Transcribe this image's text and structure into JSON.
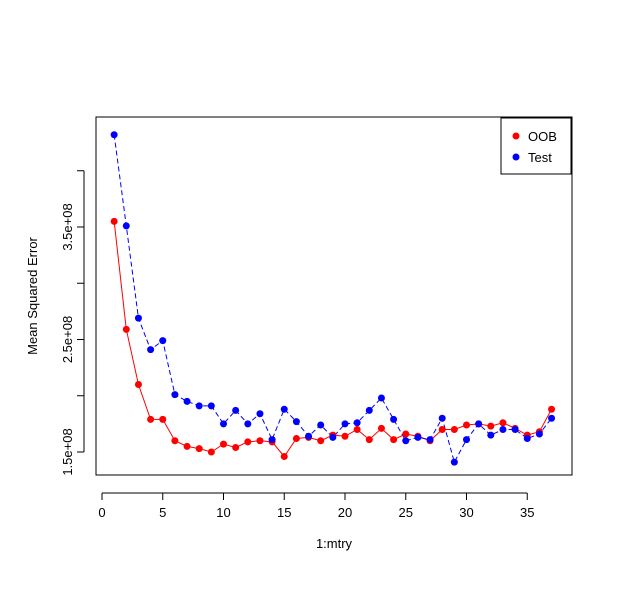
{
  "chart_data": {
    "type": "scatter",
    "xlabel": "1:mtry",
    "ylabel": "Mean Squared Error",
    "xlim": [
      0,
      38
    ],
    "ylim": [
      137000000,
      430000000
    ],
    "xticks": [
      0,
      5,
      10,
      15,
      20,
      25,
      30,
      35
    ],
    "yticks_minor": [
      150000000,
      200000000,
      250000000,
      300000000,
      350000000,
      400000000
    ],
    "ytick_labels": [
      {
        "value": 150000000,
        "label": "1.5e+08"
      },
      {
        "value": 250000000,
        "label": "2.5e+08"
      },
      {
        "value": 350000000,
        "label": "3.5e+08"
      }
    ],
    "legend_position": "top-right",
    "series": [
      {
        "name": "OOB",
        "color": "#ff0000",
        "line_style": "solid",
        "x": [
          1,
          2,
          3,
          4,
          5,
          6,
          7,
          8,
          9,
          10,
          11,
          12,
          13,
          14,
          15,
          16,
          17,
          18,
          19,
          20,
          21,
          22,
          23,
          24,
          25,
          26,
          27,
          28,
          29,
          30,
          31,
          32,
          33,
          34,
          35,
          36,
          37
        ],
        "y": [
          355000000,
          259000000,
          210000000,
          179000000,
          179000000,
          160000000,
          155000000,
          153000000,
          150000000,
          157000000,
          154000000,
          159000000,
          160000000,
          159000000,
          146000000,
          162000000,
          163000000,
          160000000,
          165000000,
          164000000,
          170000000,
          161000000,
          171000000,
          161000000,
          166000000,
          164000000,
          160000000,
          170000000,
          170000000,
          174000000,
          175000000,
          173000000,
          176000000,
          171000000,
          165000000,
          168000000,
          188000000
        ]
      },
      {
        "name": "Test",
        "color": "#0000ff",
        "line_style": "dashed",
        "x": [
          1,
          2,
          3,
          4,
          5,
          6,
          7,
          8,
          9,
          10,
          11,
          12,
          13,
          14,
          15,
          16,
          17,
          18,
          19,
          20,
          21,
          22,
          23,
          24,
          25,
          26,
          27,
          28,
          29,
          30,
          31,
          32,
          33,
          34,
          35,
          36,
          37
        ],
        "y": [
          432000000,
          351000000,
          269000000,
          241000000,
          249000000,
          201000000,
          195000000,
          191000000,
          191000000,
          175000000,
          187000000,
          175000000,
          184000000,
          161000000,
          188000000,
          177000000,
          164000000,
          174000000,
          163000000,
          175000000,
          176000000,
          187000000,
          198000000,
          179000000,
          160000000,
          163000000,
          161000000,
          180000000,
          141000000,
          161000000,
          175000000,
          165000000,
          170000000,
          170000000,
          162000000,
          166000000,
          180000000
        ]
      }
    ]
  }
}
